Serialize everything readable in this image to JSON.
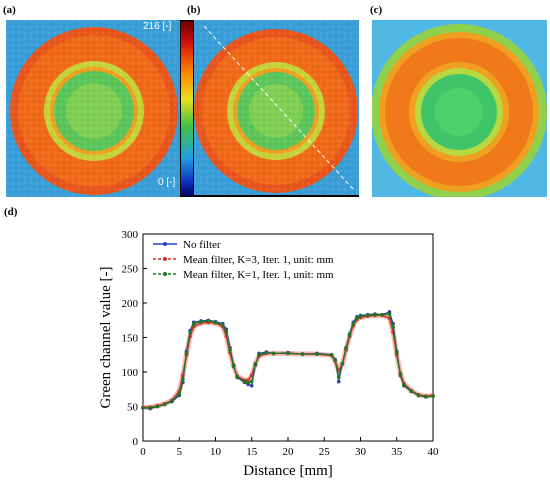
{
  "panels": {
    "a": "(a)",
    "b": "(b)",
    "c": "(c)",
    "d": "(d)"
  },
  "colorbar": {
    "max_label": "216 [-]",
    "min_label": "0 [-]"
  },
  "colors": {
    "no_filter": "#2b3fbf",
    "k3": "#d0342c",
    "k1": "#1f7a1f",
    "k3_band": "#f3b9b5"
  },
  "chart_data": {
    "type": "line",
    "title": "",
    "xlabel": "Distance [mm]",
    "ylabel": "Green channel value [-]",
    "xlim": [
      0,
      40
    ],
    "ylim": [
      0,
      300
    ],
    "xticks": [
      0,
      5,
      10,
      15,
      20,
      25,
      30,
      35,
      40
    ],
    "yticks": [
      0,
      50,
      100,
      150,
      200,
      250,
      300
    ],
    "legend_position": "top-left",
    "series": [
      {
        "name": "No filter",
        "x": [
          0,
          1,
          2,
          3,
          4,
          5,
          5.5,
          6,
          6.5,
          7,
          8,
          9,
          10,
          11,
          11.5,
          12,
          12.5,
          13,
          14,
          14.5,
          15,
          15.5,
          16,
          17,
          18,
          20,
          22,
          24,
          26,
          26.5,
          27,
          27.5,
          28,
          28.5,
          29,
          29.5,
          30,
          31,
          32,
          33,
          34,
          34.5,
          35,
          35.5,
          36,
          37,
          38,
          39,
          40
        ],
        "y": [
          48,
          47,
          50,
          53,
          57,
          66,
          85,
          130,
          160,
          172,
          174,
          175,
          173,
          170,
          162,
          135,
          110,
          92,
          85,
          82,
          80,
          110,
          127,
          129,
          127,
          128,
          126,
          127,
          125,
          118,
          86,
          112,
          135,
          155,
          172,
          180,
          182,
          183,
          184,
          183,
          187,
          170,
          130,
          95,
          80,
          72,
          66,
          64,
          65
        ]
      },
      {
        "name": "Mean filter, K=3, Iter. 1, unit: mm",
        "x": [
          0,
          1,
          2,
          3,
          4,
          5,
          5.5,
          6,
          6.5,
          7,
          8,
          9,
          10,
          11,
          11.5,
          12,
          12.5,
          13,
          14,
          14.5,
          15,
          15.5,
          16,
          17,
          18,
          20,
          22,
          24,
          26,
          26.5,
          27,
          27.5,
          28,
          28.5,
          29,
          29.5,
          30,
          31,
          32,
          33,
          34,
          34.5,
          35,
          35.5,
          36,
          37,
          38,
          39,
          40
        ],
        "y": [
          49,
          49,
          51,
          54,
          59,
          72,
          95,
          125,
          152,
          166,
          171,
          172,
          171,
          166,
          152,
          128,
          108,
          94,
          88,
          88,
          95,
          112,
          123,
          127,
          127,
          127,
          126,
          126,
          124,
          116,
          102,
          112,
          132,
          152,
          167,
          176,
          179,
          181,
          182,
          182,
          178,
          158,
          125,
          98,
          83,
          73,
          67,
          65,
          66
        ]
      },
      {
        "name": "Mean filter, K=1, Iter. 1, unit: mm",
        "x": [
          0,
          1,
          2,
          3,
          4,
          5,
          5.5,
          6,
          6.5,
          7,
          8,
          9,
          10,
          11,
          11.5,
          12,
          12.5,
          13,
          14,
          14.5,
          15,
          15.5,
          16,
          17,
          18,
          20,
          22,
          24,
          26,
          26.5,
          27,
          27.5,
          28,
          28.5,
          29,
          29.5,
          30,
          31,
          32,
          33,
          34,
          34.5,
          35,
          35.5,
          36,
          37,
          38,
          39,
          40
        ],
        "y": [
          48,
          48,
          50,
          53,
          58,
          68,
          90,
          128,
          157,
          170,
          173,
          174,
          172,
          168,
          158,
          132,
          109,
          93,
          86,
          84,
          86,
          111,
          125,
          128,
          127,
          127,
          126,
          126,
          125,
          117,
          92,
          112,
          134,
          154,
          170,
          178,
          181,
          182,
          183,
          183,
          184,
          165,
          128,
          96,
          81,
          72,
          66,
          64,
          65
        ]
      }
    ]
  }
}
